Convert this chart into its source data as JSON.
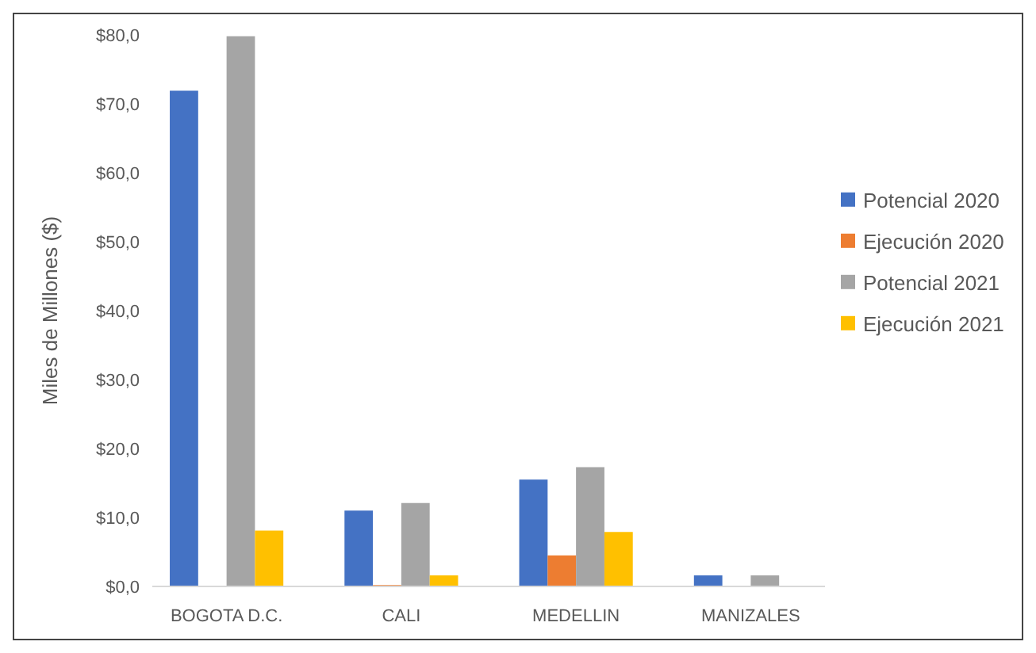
{
  "chart_data": {
    "type": "bar",
    "ylabel": "Miles de Millones ($)",
    "categories": [
      "BOGOTA D.C.",
      "CALI",
      "MEDELLIN",
      "MANIZALES"
    ],
    "series": [
      {
        "name": "Potencial 2020",
        "color": "#4472c4",
        "values": [
          71.9,
          11.0,
          15.5,
          1.6
        ]
      },
      {
        "name": "Ejecución 2020",
        "color": "#ed7d31",
        "values": [
          0,
          0.2,
          4.5,
          0
        ]
      },
      {
        "name": "Potencial 2021",
        "color": "#a5a5a5",
        "values": [
          79.8,
          12.1,
          17.3,
          1.6
        ]
      },
      {
        "name": "Ejecución 2021",
        "color": "#ffc000",
        "values": [
          8.1,
          1.6,
          7.9,
          0
        ]
      }
    ],
    "ylim": [
      0,
      80
    ],
    "yticks": [
      {
        "value": 0,
        "label": "$0,0"
      },
      {
        "value": 10,
        "label": "$10,0"
      },
      {
        "value": 20,
        "label": "$20,0"
      },
      {
        "value": 30,
        "label": "$30,0"
      },
      {
        "value": 40,
        "label": "$40,0"
      },
      {
        "value": 50,
        "label": "$50,0"
      },
      {
        "value": 60,
        "label": "$60,0"
      },
      {
        "value": 70,
        "label": "$70,0"
      },
      {
        "value": 80,
        "label": "$80,0"
      }
    ],
    "grid": false,
    "legend": "right"
  }
}
